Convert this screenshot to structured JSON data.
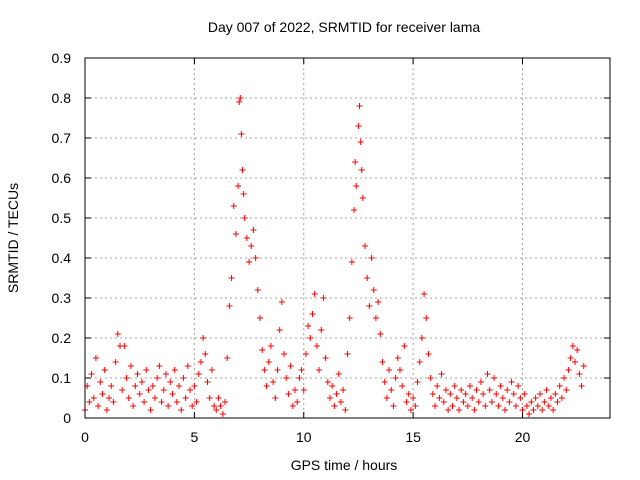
{
  "chart_data": {
    "type": "scatter",
    "title": "Day 007 of 2022, SRMTID for receiver lama",
    "xlabel": "GPS time / hours",
    "ylabel": "SRMTID / TECUs",
    "xlim": [
      0,
      24
    ],
    "ylim": [
      0,
      0.9
    ],
    "xticks": [
      "0",
      "5",
      "10",
      "15",
      "20"
    ],
    "yticks": [
      "0",
      "0.1",
      "0.2",
      "0.3",
      "0.4",
      "0.5",
      "0.6",
      "0.7",
      "0.8",
      "0.9"
    ],
    "grid": true,
    "marker": "plus",
    "color": "#ff0000",
    "series": [
      {
        "points": [
          [
            0.0,
            0.02
          ],
          [
            0.1,
            0.08
          ],
          [
            0.2,
            0.04
          ],
          [
            0.3,
            0.11
          ],
          [
            0.4,
            0.05
          ],
          [
            0.5,
            0.15
          ],
          [
            0.6,
            0.03
          ],
          [
            0.7,
            0.09
          ],
          [
            0.8,
            0.06
          ],
          [
            0.9,
            0.12
          ],
          [
            1.0,
            0.02
          ],
          [
            1.1,
            0.05
          ],
          [
            1.2,
            0.08
          ],
          [
            1.3,
            0.04
          ],
          [
            1.4,
            0.14
          ],
          [
            1.5,
            0.21
          ],
          [
            1.6,
            0.18
          ],
          [
            1.7,
            0.07
          ],
          [
            1.8,
            0.18
          ],
          [
            1.9,
            0.1
          ],
          [
            2.0,
            0.05
          ],
          [
            2.1,
            0.13
          ],
          [
            2.2,
            0.03
          ],
          [
            2.3,
            0.08
          ],
          [
            2.4,
            0.11
          ],
          [
            2.5,
            0.06
          ],
          [
            2.6,
            0.09
          ],
          [
            2.7,
            0.04
          ],
          [
            2.8,
            0.12
          ],
          [
            2.9,
            0.07
          ],
          [
            3.0,
            0.02
          ],
          [
            3.1,
            0.08
          ],
          [
            3.2,
            0.05
          ],
          [
            3.3,
            0.1
          ],
          [
            3.4,
            0.13
          ],
          [
            3.5,
            0.04
          ],
          [
            3.6,
            0.07
          ],
          [
            3.7,
            0.11
          ],
          [
            3.8,
            0.03
          ],
          [
            3.9,
            0.09
          ],
          [
            4.0,
            0.06
          ],
          [
            4.1,
            0.12
          ],
          [
            4.2,
            0.04
          ],
          [
            4.3,
            0.08
          ],
          [
            4.4,
            0.02
          ],
          [
            4.5,
            0.1
          ],
          [
            4.6,
            0.05
          ],
          [
            4.7,
            0.13
          ],
          [
            4.8,
            0.07
          ],
          [
            4.9,
            0.03
          ],
          [
            5.0,
            0.08
          ],
          [
            5.1,
            0.04
          ],
          [
            5.2,
            0.11
          ],
          [
            5.3,
            0.14
          ],
          [
            5.4,
            0.2
          ],
          [
            5.5,
            0.16
          ],
          [
            5.6,
            0.09
          ],
          [
            5.7,
            0.05
          ],
          [
            5.8,
            0.12
          ],
          [
            5.9,
            0.03
          ],
          [
            6.0,
            0.02
          ],
          [
            6.1,
            0.05
          ],
          [
            6.2,
            0.03
          ],
          [
            6.3,
            0.01
          ],
          [
            6.4,
            0.04
          ],
          [
            6.5,
            0.15
          ],
          [
            6.6,
            0.28
          ],
          [
            6.7,
            0.35
          ],
          [
            6.8,
            0.53
          ],
          [
            6.9,
            0.46
          ],
          [
            7.0,
            0.58
          ],
          [
            7.05,
            0.79
          ],
          [
            7.1,
            0.8
          ],
          [
            7.15,
            0.71
          ],
          [
            7.2,
            0.62
          ],
          [
            7.25,
            0.56
          ],
          [
            7.3,
            0.5
          ],
          [
            7.4,
            0.45
          ],
          [
            7.5,
            0.39
          ],
          [
            7.6,
            0.43
          ],
          [
            7.7,
            0.47
          ],
          [
            7.8,
            0.4
          ],
          [
            7.9,
            0.32
          ],
          [
            8.0,
            0.25
          ],
          [
            8.1,
            0.17
          ],
          [
            8.2,
            0.12
          ],
          [
            8.3,
            0.08
          ],
          [
            8.4,
            0.14
          ],
          [
            8.5,
            0.18
          ],
          [
            8.6,
            0.09
          ],
          [
            8.7,
            0.05
          ],
          [
            8.8,
            0.12
          ],
          [
            8.9,
            0.22
          ],
          [
            9.0,
            0.29
          ],
          [
            9.1,
            0.16
          ],
          [
            9.2,
            0.1
          ],
          [
            9.3,
            0.06
          ],
          [
            9.4,
            0.13
          ],
          [
            9.5,
            0.03
          ],
          [
            9.6,
            0.07
          ],
          [
            9.7,
            0.04
          ],
          [
            9.8,
            0.1
          ],
          [
            9.9,
            0.12
          ],
          [
            10.0,
            0.07
          ],
          [
            10.1,
            0.16
          ],
          [
            10.2,
            0.23
          ],
          [
            10.3,
            0.2
          ],
          [
            10.4,
            0.26
          ],
          [
            10.5,
            0.31
          ],
          [
            10.6,
            0.18
          ],
          [
            10.7,
            0.12
          ],
          [
            10.8,
            0.22
          ],
          [
            10.9,
            0.3
          ],
          [
            11.0,
            0.15
          ],
          [
            11.1,
            0.09
          ],
          [
            11.2,
            0.05
          ],
          [
            11.3,
            0.08
          ],
          [
            11.4,
            0.03
          ],
          [
            11.5,
            0.06
          ],
          [
            11.6,
            0.11
          ],
          [
            11.7,
            0.04
          ],
          [
            11.8,
            0.07
          ],
          [
            11.9,
            0.02
          ],
          [
            12.0,
            0.16
          ],
          [
            12.1,
            0.25
          ],
          [
            12.2,
            0.39
          ],
          [
            12.3,
            0.52
          ],
          [
            12.35,
            0.64
          ],
          [
            12.4,
            0.58
          ],
          [
            12.5,
            0.73
          ],
          [
            12.55,
            0.78
          ],
          [
            12.6,
            0.69
          ],
          [
            12.65,
            0.62
          ],
          [
            12.7,
            0.55
          ],
          [
            12.8,
            0.43
          ],
          [
            12.9,
            0.35
          ],
          [
            13.0,
            0.28
          ],
          [
            13.1,
            0.4
          ],
          [
            13.2,
            0.32
          ],
          [
            13.3,
            0.25
          ],
          [
            13.4,
            0.29
          ],
          [
            13.5,
            0.21
          ],
          [
            13.6,
            0.14
          ],
          [
            13.7,
            0.09
          ],
          [
            13.8,
            0.05
          ],
          [
            13.9,
            0.12
          ],
          [
            14.0,
            0.07
          ],
          [
            14.1,
            0.03
          ],
          [
            14.2,
            0.1
          ],
          [
            14.3,
            0.15
          ],
          [
            14.4,
            0.12
          ],
          [
            14.5,
            0.08
          ],
          [
            14.6,
            0.18
          ],
          [
            14.7,
            0.04
          ],
          [
            14.8,
            0.06
          ],
          [
            14.9,
            0.02
          ],
          [
            15.0,
            0.05
          ],
          [
            15.1,
            0.03
          ],
          [
            15.2,
            0.09
          ],
          [
            15.3,
            0.14
          ],
          [
            15.4,
            0.2
          ],
          [
            15.5,
            0.31
          ],
          [
            15.6,
            0.25
          ],
          [
            15.7,
            0.16
          ],
          [
            15.8,
            0.1
          ],
          [
            15.9,
            0.06
          ],
          [
            16.0,
            0.03
          ],
          [
            16.1,
            0.08
          ],
          [
            16.2,
            0.05
          ],
          [
            16.3,
            0.11
          ],
          [
            16.4,
            0.04
          ],
          [
            16.5,
            0.07
          ],
          [
            16.6,
            0.02
          ],
          [
            16.7,
            0.06
          ],
          [
            16.8,
            0.03
          ],
          [
            16.9,
            0.08
          ],
          [
            17.0,
            0.05
          ],
          [
            17.1,
            0.02
          ],
          [
            17.2,
            0.07
          ],
          [
            17.3,
            0.04
          ],
          [
            17.4,
            0.06
          ],
          [
            17.5,
            0.03
          ],
          [
            17.6,
            0.08
          ],
          [
            17.7,
            0.05
          ],
          [
            17.8,
            0.02
          ],
          [
            17.9,
            0.07
          ],
          [
            18.0,
            0.04
          ],
          [
            18.1,
            0.09
          ],
          [
            18.2,
            0.06
          ],
          [
            18.3,
            0.03
          ],
          [
            18.4,
            0.11
          ],
          [
            18.5,
            0.07
          ],
          [
            18.6,
            0.04
          ],
          [
            18.7,
            0.1
          ],
          [
            18.8,
            0.06
          ],
          [
            18.9,
            0.03
          ],
          [
            19.0,
            0.08
          ],
          [
            19.1,
            0.05
          ],
          [
            19.2,
            0.02
          ],
          [
            19.3,
            0.07
          ],
          [
            19.4,
            0.04
          ],
          [
            19.5,
            0.09
          ],
          [
            19.6,
            0.06
          ],
          [
            19.7,
            0.03
          ],
          [
            19.8,
            0.08
          ],
          [
            19.9,
            0.05
          ],
          [
            20.0,
            0.02
          ],
          [
            20.1,
            0.06
          ],
          [
            20.2,
            0.03
          ],
          [
            20.3,
            0.01
          ],
          [
            20.4,
            0.04
          ],
          [
            20.5,
            0.02
          ],
          [
            20.6,
            0.05
          ],
          [
            20.7,
            0.03
          ],
          [
            20.8,
            0.06
          ],
          [
            20.9,
            0.02
          ],
          [
            21.0,
            0.04
          ],
          [
            21.1,
            0.07
          ],
          [
            21.2,
            0.03
          ],
          [
            21.3,
            0.05
          ],
          [
            21.4,
            0.02
          ],
          [
            21.5,
            0.06
          ],
          [
            21.6,
            0.04
          ],
          [
            21.7,
            0.08
          ],
          [
            21.8,
            0.05
          ],
          [
            21.9,
            0.1
          ],
          [
            22.0,
            0.07
          ],
          [
            22.1,
            0.12
          ],
          [
            22.2,
            0.15
          ],
          [
            22.3,
            0.18
          ],
          [
            22.4,
            0.14
          ],
          [
            22.5,
            0.17
          ],
          [
            22.6,
            0.11
          ],
          [
            22.7,
            0.08
          ],
          [
            22.8,
            0.13
          ]
        ]
      }
    ]
  }
}
